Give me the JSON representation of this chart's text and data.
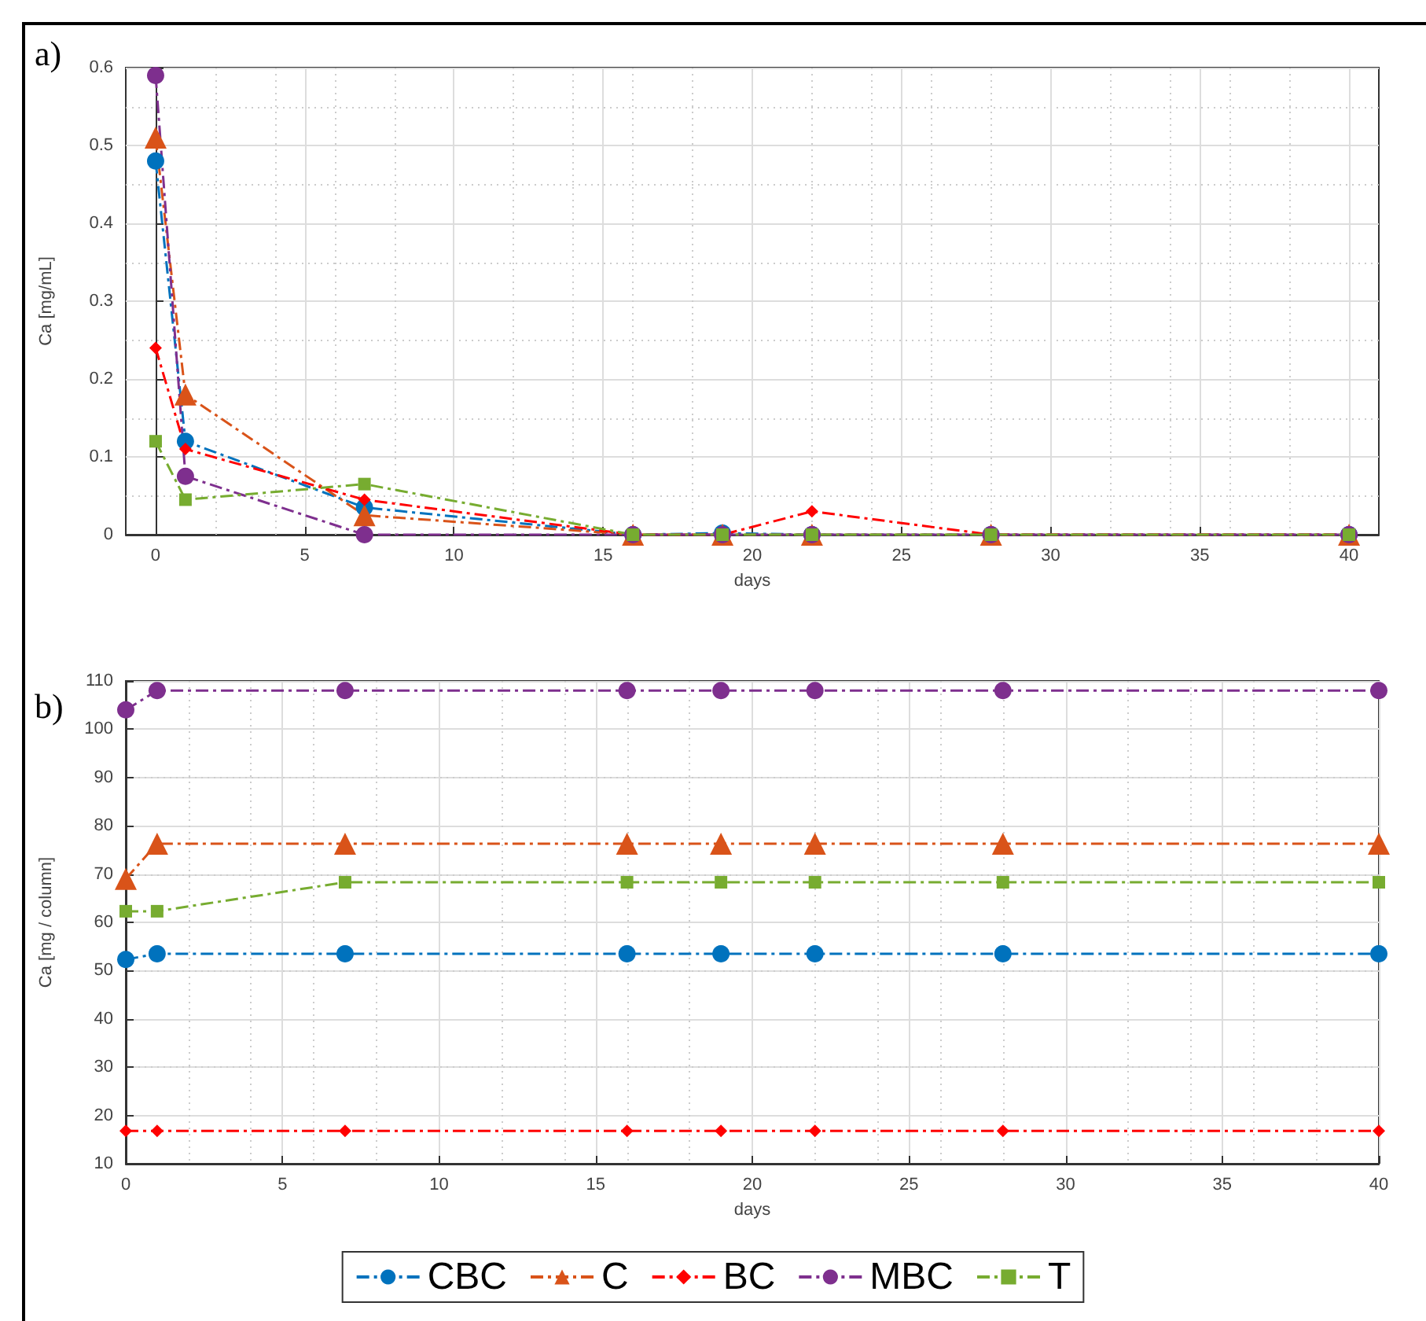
{
  "chart_data": [
    {
      "type": "line",
      "xlabel": "days",
      "ylabel": "Ca [mg/mL]",
      "annotations": [
        "a)"
      ],
      "x": [
        0,
        1,
        7,
        16,
        19,
        22,
        28,
        40
      ],
      "xlim": [
        -1,
        41
      ],
      "xticks": [
        0,
        5,
        10,
        15,
        20,
        25,
        30,
        35,
        40
      ],
      "ylim": [
        0,
        0.6
      ],
      "yticks": [
        0,
        0.1,
        0.2,
        0.3,
        0.4,
        0.5,
        0.6
      ],
      "grid": true,
      "legend": false,
      "line_style": "dashed",
      "series": [
        {
          "color": "#0072bd",
          "marker": "circle",
          "values": [
            0.48,
            0.12,
            0.035,
            0,
            0.002,
            0,
            0,
            0
          ]
        },
        {
          "color": "#d95319",
          "marker": "triangle",
          "values": [
            0.51,
            0.18,
            0.025,
            0,
            0,
            0,
            0,
            0
          ]
        },
        {
          "color": "#ff0000",
          "marker": "diamond",
          "values": [
            0.24,
            0.11,
            0.045,
            0,
            0,
            0.03,
            0,
            0
          ]
        },
        {
          "color": "#7e2f8e",
          "marker": "circle",
          "values": [
            0.59,
            0.075,
            0,
            0,
            0,
            0,
            0,
            0
          ]
        },
        {
          "color": "#77ac30",
          "marker": "square",
          "values": [
            0.12,
            0.045,
            0.065,
            0,
            0,
            0,
            0,
            0
          ]
        }
      ]
    },
    {
      "type": "line",
      "xlabel": "days",
      "ylabel": "Ca [mg / column]",
      "annotations": [
        "b)"
      ],
      "x": [
        0,
        1,
        7,
        16,
        19,
        22,
        28,
        40
      ],
      "xlim": [
        0,
        40
      ],
      "xticks": [
        0,
        5,
        10,
        15,
        20,
        25,
        30,
        35,
        40
      ],
      "ylim": [
        10,
        110
      ],
      "yticks": [
        10,
        20,
        30,
        40,
        50,
        60,
        70,
        80,
        90,
        100,
        110
      ],
      "grid": true,
      "legend": "bottom",
      "line_style": "dashed",
      "series": [
        {
          "name": "CBC",
          "color": "#0072bd",
          "marker": "circle",
          "values": [
            52.3,
            53.5,
            53.5,
            53.5,
            53.5,
            53.5,
            53.5,
            53.5
          ]
        },
        {
          "name": "C",
          "color": "#d95319",
          "marker": "triangle",
          "values": [
            69,
            76.3,
            76.3,
            76.3,
            76.3,
            76.3,
            76.3,
            76.3
          ]
        },
        {
          "name": "BC",
          "color": "#ff0000",
          "marker": "diamond",
          "values": [
            16.8,
            16.8,
            16.8,
            16.8,
            16.8,
            16.8,
            16.8,
            16.8
          ]
        },
        {
          "name": "MBC",
          "color": "#7e2f8e",
          "marker": "circle",
          "values": [
            104,
            108,
            108,
            108,
            108,
            108,
            108,
            108
          ]
        },
        {
          "name": "T",
          "color": "#77ac30",
          "marker": "square",
          "values": [
            62.3,
            62.3,
            68.3,
            68.3,
            68.3,
            68.3,
            68.3,
            68.3
          ]
        }
      ]
    }
  ]
}
